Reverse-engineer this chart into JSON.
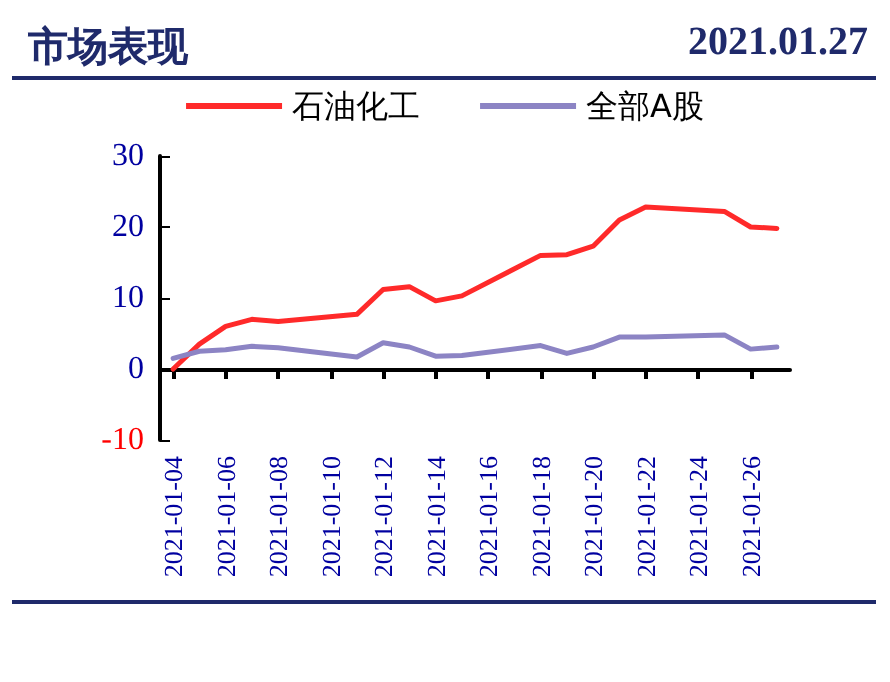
{
  "chart_data": {
    "type": "line",
    "title": "市场表现",
    "subtitle": "2021.01.27",
    "x": [
      "2021-01-04",
      "2021-01-05",
      "2021-01-06",
      "2021-01-07",
      "2021-01-08",
      "2021-01-11",
      "2021-01-12",
      "2021-01-13",
      "2021-01-14",
      "2021-01-15",
      "2021-01-18",
      "2021-01-19",
      "2021-01-20",
      "2021-01-21",
      "2021-01-22",
      "2021-01-25",
      "2021-01-26",
      "2021-01-27"
    ],
    "series": [
      {
        "name": "石油化工",
        "color": "#ff2a2a",
        "values": [
          0,
          3.5,
          6,
          7,
          6.7,
          7.7,
          11.2,
          11.6,
          9.6,
          10.3,
          16,
          16.1,
          17.3,
          21,
          22.8,
          22.2,
          20,
          19.8
        ]
      },
      {
        "name": "全部A股",
        "color": "#8c84c4",
        "values": [
          1.5,
          2.5,
          2.7,
          3.2,
          3,
          1.7,
          3.7,
          3.1,
          1.8,
          1.9,
          3.3,
          2.2,
          3.1,
          4.5,
          4.5,
          4.8,
          2.8,
          3.1
        ]
      }
    ],
    "xlim": [
      "2021-01-03T12:00",
      "2021-01-27T12:00"
    ],
    "xticks": [
      "2021-01-04",
      "2021-01-06",
      "2021-01-08",
      "2021-01-10",
      "2021-01-12",
      "2021-01-14",
      "2021-01-16",
      "2021-01-18",
      "2021-01-20",
      "2021-01-22",
      "2021-01-24",
      "2021-01-26"
    ],
    "ylim": [
      -10,
      30
    ],
    "yticks": [
      -10,
      0,
      10,
      20,
      30
    ],
    "legend": "top",
    "marker": "none",
    "line_style": "solid"
  }
}
